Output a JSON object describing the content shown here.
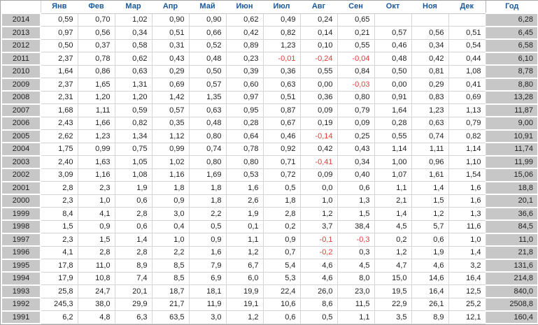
{
  "table": {
    "corner_label": "",
    "month_columns": [
      "Янв",
      "Фев",
      "Мар",
      "Апр",
      "Май",
      "Июн",
      "Июл",
      "Авг",
      "Сен",
      "Окт",
      "Ноя",
      "Дек"
    ],
    "total_column": "Год",
    "rows": [
      {
        "year": "2014",
        "months": [
          "0,59",
          "0,70",
          "1,02",
          "0,90",
          "0,90",
          "0,62",
          "0,49",
          "0,24",
          "0,65",
          "",
          "",
          ""
        ],
        "total": "6,28"
      },
      {
        "year": "2013",
        "months": [
          "0,97",
          "0,56",
          "0,34",
          "0,51",
          "0,66",
          "0,42",
          "0,82",
          "0,14",
          "0,21",
          "0,57",
          "0,56",
          "0,51"
        ],
        "total": "6,45"
      },
      {
        "year": "2012",
        "months": [
          "0,50",
          "0,37",
          "0,58",
          "0,31",
          "0,52",
          "0,89",
          "1,23",
          "0,10",
          "0,55",
          "0,46",
          "0,34",
          "0,54"
        ],
        "total": "6,58"
      },
      {
        "year": "2011",
        "months": [
          "2,37",
          "0,78",
          "0,62",
          "0,43",
          "0,48",
          "0,23",
          "-0,01",
          "-0,24",
          "-0,04",
          "0,48",
          "0,42",
          "0,44"
        ],
        "total": "6,10"
      },
      {
        "year": "2010",
        "months": [
          "1,64",
          "0,86",
          "0,63",
          "0,29",
          "0,50",
          "0,39",
          "0,36",
          "0,55",
          "0,84",
          "0,50",
          "0,81",
          "1,08"
        ],
        "total": "8,78"
      },
      {
        "year": "2009",
        "months": [
          "2,37",
          "1,65",
          "1,31",
          "0,69",
          "0,57",
          "0,60",
          "0,63",
          "0,00",
          "-0,03",
          "0,00",
          "0,29",
          "0,41"
        ],
        "total": "8,80"
      },
      {
        "year": "2008",
        "months": [
          "2,31",
          "1,20",
          "1,20",
          "1,42",
          "1,35",
          "0,97",
          "0,51",
          "0,36",
          "0,80",
          "0,91",
          "0,83",
          "0,69"
        ],
        "total": "13,28"
      },
      {
        "year": "2007",
        "months": [
          "1,68",
          "1,11",
          "0,59",
          "0,57",
          "0,63",
          "0,95",
          "0,87",
          "0,09",
          "0,79",
          "1,64",
          "1,23",
          "1,13"
        ],
        "total": "11,87"
      },
      {
        "year": "2006",
        "months": [
          "2,43",
          "1,66",
          "0,82",
          "0,35",
          "0,48",
          "0,28",
          "0,67",
          "0,19",
          "0,09",
          "0,28",
          "0,63",
          "0,79"
        ],
        "total": "9,00"
      },
      {
        "year": "2005",
        "months": [
          "2,62",
          "1,23",
          "1,34",
          "1,12",
          "0,80",
          "0,64",
          "0,46",
          "-0,14",
          "0,25",
          "0,55",
          "0,74",
          "0,82"
        ],
        "total": "10,91"
      },
      {
        "year": "2004",
        "months": [
          "1,75",
          "0,99",
          "0,75",
          "0,99",
          "0,74",
          "0,78",
          "0,92",
          "0,42",
          "0,43",
          "1,14",
          "1,11",
          "1,14"
        ],
        "total": "11,74"
      },
      {
        "year": "2003",
        "months": [
          "2,40",
          "1,63",
          "1,05",
          "1,02",
          "0,80",
          "0,80",
          "0,71",
          "-0,41",
          "0,34",
          "1,00",
          "0,96",
          "1,10"
        ],
        "total": "11,99"
      },
      {
        "year": "2002",
        "months": [
          "3,09",
          "1,16",
          "1,08",
          "1,16",
          "1,69",
          "0,53",
          "0,72",
          "0,09",
          "0,40",
          "1,07",
          "1,61",
          "1,54"
        ],
        "total": "15,06"
      },
      {
        "year": "2001",
        "months": [
          "2,8",
          "2,3",
          "1,9",
          "1,8",
          "1,8",
          "1,6",
          "0,5",
          "0,0",
          "0,6",
          "1,1",
          "1,4",
          "1,6"
        ],
        "total": "18,8"
      },
      {
        "year": "2000",
        "months": [
          "2,3",
          "1,0",
          "0,6",
          "0,9",
          "1,8",
          "2,6",
          "1,8",
          "1,0",
          "1,3",
          "2,1",
          "1,5",
          "1,6"
        ],
        "total": "20,1"
      },
      {
        "year": "1999",
        "months": [
          "8,4",
          "4,1",
          "2,8",
          "3,0",
          "2,2",
          "1,9",
          "2,8",
          "1,2",
          "1,5",
          "1,4",
          "1,2",
          "1,3"
        ],
        "total": "36,6"
      },
      {
        "year": "1998",
        "months": [
          "1,5",
          "0,9",
          "0,6",
          "0,4",
          "0,5",
          "0,1",
          "0,2",
          "3,7",
          "38,4",
          "4,5",
          "5,7",
          "11,6"
        ],
        "total": "84,5"
      },
      {
        "year": "1997",
        "months": [
          "2,3",
          "1,5",
          "1,4",
          "1,0",
          "0,9",
          "1,1",
          "0,9",
          "-0,1",
          "-0,3",
          "0,2",
          "0,6",
          "1,0"
        ],
        "total": "11,0"
      },
      {
        "year": "1996",
        "months": [
          "4,1",
          "2,8",
          "2,8",
          "2,2",
          "1,6",
          "1,2",
          "0,7",
          "-0,2",
          "0,3",
          "1,2",
          "1,9",
          "1,4"
        ],
        "total": "21,8"
      },
      {
        "year": "1995",
        "months": [
          "17,8",
          "11,0",
          "8,9",
          "8,5",
          "7,9",
          "6,7",
          "5,4",
          "4,6",
          "4,5",
          "4,7",
          "4,6",
          "3,2"
        ],
        "total": "131,6"
      },
      {
        "year": "1994",
        "months": [
          "17,9",
          "10,8",
          "7,4",
          "8,5",
          "6,9",
          "6,0",
          "5,3",
          "4,6",
          "8,0",
          "15,0",
          "14,6",
          "16,4"
        ],
        "total": "214,8"
      },
      {
        "year": "1993",
        "months": [
          "25,8",
          "24,7",
          "20,1",
          "18,7",
          "18,1",
          "19,9",
          "22,4",
          "26,0",
          "23,0",
          "19,5",
          "16,4",
          "12,5"
        ],
        "total": "840,0"
      },
      {
        "year": "1992",
        "months": [
          "245,3",
          "38,0",
          "29,9",
          "21,7",
          "11,9",
          "19,1",
          "10,6",
          "8,6",
          "11,5",
          "22,9",
          "26,1",
          "25,2"
        ],
        "total": "2508,8"
      },
      {
        "year": "1991",
        "months": [
          "6,2",
          "4,8",
          "6,3",
          "63,5",
          "3,0",
          "1,2",
          "0,6",
          "0,5",
          "1,1",
          "3,5",
          "8,9",
          "12,1"
        ],
        "total": "160,4"
      }
    ]
  },
  "colors": {
    "header_text": "#1a579b",
    "negative_text": "#e23b3b",
    "label_bg": "#c7c7c7",
    "grid_line": "#d4d4d4"
  }
}
